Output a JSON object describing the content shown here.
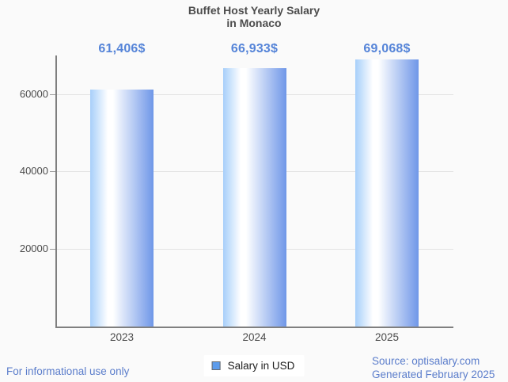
{
  "title": {
    "line1": "Buffet Host Yearly Salary",
    "line2": "in Monaco"
  },
  "chart_data": {
    "type": "bar",
    "title": "Buffet Host Yearly Salary in Monaco",
    "categories": [
      "2023",
      "2024",
      "2025"
    ],
    "series": [
      {
        "name": "Salary in USD",
        "values": [
          61406,
          66933,
          69068
        ],
        "value_labels": [
          "61,406$",
          "66,933$",
          "69,068$"
        ]
      }
    ],
    "xlabel": "",
    "ylabel": "",
    "ylim": [
      0,
      70000
    ],
    "yticks": [
      20000,
      40000,
      60000
    ],
    "ytick_labels": [
      "20000",
      "40000",
      "60000"
    ],
    "grid": true,
    "legend_position": "bottom"
  },
  "legend": {
    "label": "Salary in USD"
  },
  "footer": {
    "disclaimer": "For informational use only",
    "source": "Source: optisalary.com",
    "generated": "Generated February 2025"
  },
  "colors": {
    "accent_blue_text": "#5584d8",
    "footer_blue_text": "#5b7dcb",
    "bar_gradient_left": "#a7cffa",
    "bar_gradient_mid": "#ffffff",
    "bar_gradient_right": "#6f97e8",
    "legend_swatch_blue": "#5d9cec",
    "axis_gray": "#7f7f7f",
    "gridline_gray": "#e2e2e2",
    "background": "#fafafa",
    "title_gray": "#4c4c4c"
  }
}
